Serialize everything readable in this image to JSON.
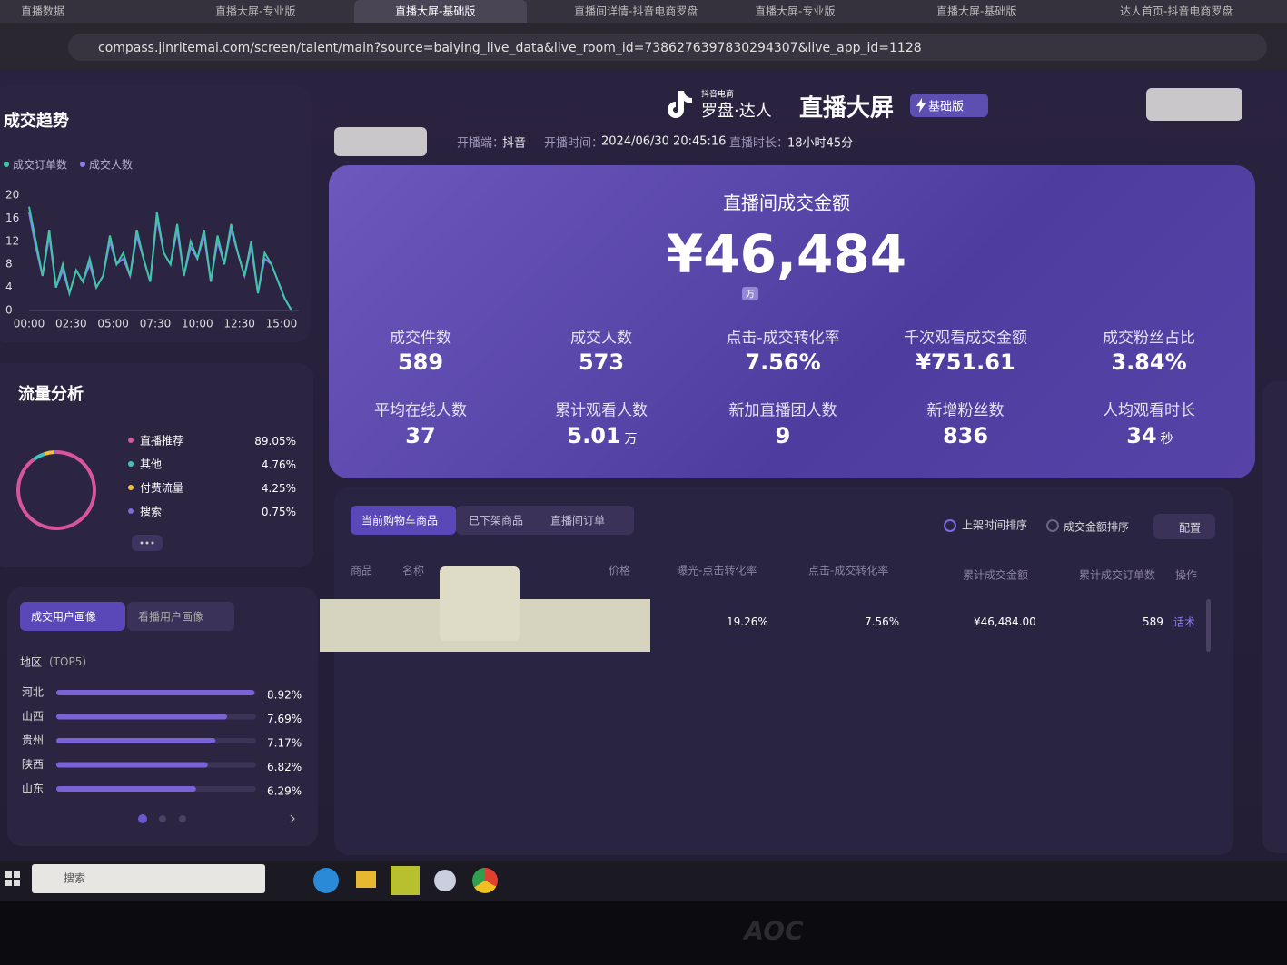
{
  "browser": {
    "tabs": [
      "直播数据",
      "直播大屏-专业版",
      "直播大屏-基础版",
      "直播间详情-抖音电商罗盘",
      "直播大屏-专业版",
      "直播大屏-基础版",
      "达人首页-抖音电商罗盘"
    ],
    "url": "compass.jinritemai.com/screen/talent/main?source=baiying_live_data&live_room_id=7386276397830294307&live_app_id=1128"
  },
  "header": {
    "brand_small": "抖音电商",
    "brand": "罗盘·达人",
    "title": "直播大屏",
    "badge": "基础版",
    "platform_label": "开播端：",
    "platform": "抖音",
    "start_label": "开播时间：",
    "start": "2024/06/30 20:45:16",
    "duration_label": "直播时长：",
    "duration": "18小时45分"
  },
  "trend": {
    "title": "成交趋势",
    "chart": {
      "type": "line",
      "x": [
        0,
        24,
        48,
        72,
        96,
        120,
        144,
        168,
        192,
        216,
        240,
        264,
        288,
        312,
        336,
        360,
        384,
        408,
        432,
        456,
        480,
        504,
        528,
        552,
        576,
        600,
        624,
        648,
        672,
        696,
        720,
        744,
        768,
        792,
        816,
        840,
        864,
        888,
        912,
        936
      ],
      "xlim": [
        0,
        960
      ],
      "xticks": [
        {
          "value": 0,
          "label": "00:00"
        },
        {
          "value": 150,
          "label": "02:30"
        },
        {
          "value": 300,
          "label": "05:00"
        },
        {
          "value": 450,
          "label": "07:30"
        },
        {
          "value": 600,
          "label": "10:00"
        },
        {
          "value": 750,
          "label": "12:30"
        },
        {
          "value": 900,
          "label": "15:00"
        }
      ],
      "ylim": [
        0,
        20
      ],
      "yticks": [
        0,
        4,
        8,
        12,
        16,
        20
      ],
      "series": [
        {
          "name": "成交订单数",
          "color": "#3fc6a8",
          "values": [
            18,
            12,
            6,
            14,
            4,
            8,
            3,
            7,
            5,
            9,
            4,
            6,
            13,
            8,
            10,
            6,
            14,
            9,
            5,
            17,
            10,
            8,
            15,
            6,
            12,
            9,
            14,
            5,
            13,
            8,
            15,
            10,
            6,
            12,
            3,
            10,
            8,
            5,
            2,
            0
          ]
        },
        {
          "name": "成交人数",
          "color": "#8b7cf0",
          "values": [
            17,
            11,
            6,
            13,
            4,
            7,
            3,
            7,
            5,
            8,
            4,
            6,
            12,
            8,
            9,
            6,
            13,
            9,
            5,
            16,
            10,
            8,
            14,
            6,
            11,
            9,
            13,
            5,
            12,
            8,
            14,
            10,
            6,
            11,
            3,
            9,
            8,
            5,
            2,
            0
          ]
        }
      ]
    }
  },
  "traffic": {
    "title": "流量分析",
    "chart": {
      "type": "donut",
      "categories": [
        "直播推荐",
        "其他",
        "付费流量",
        "搜索"
      ],
      "values": [
        89.05,
        4.76,
        4.25,
        0.75
      ],
      "value_labels": [
        "89.05%",
        "4.76%",
        "4.25%",
        "0.75%"
      ],
      "colors": [
        "#d8559c",
        "#3fc6c0",
        "#f0c040",
        "#7b6ae0"
      ]
    }
  },
  "portrait": {
    "tabs": [
      "成交用户画像",
      "看播用户画像"
    ],
    "region_label": "地区",
    "region_note": "(TOP5)",
    "chart": {
      "type": "bar",
      "orientation": "horizontal",
      "categories": [
        "河北",
        "山西",
        "贵州",
        "陕西",
        "山东"
      ],
      "values": [
        8.92,
        7.69,
        7.17,
        6.82,
        6.29
      ],
      "value_labels": [
        "8.92%",
        "7.69%",
        "7.17%",
        "6.82%",
        "6.29%"
      ],
      "xlim": [
        0,
        9
      ],
      "color": "#7a62d8"
    }
  },
  "kpi": {
    "title": "直播间成交金额",
    "value": "¥46,484",
    "unit": "万",
    "metrics": [
      {
        "label": "成交件数",
        "value": "589"
      },
      {
        "label": "成交人数",
        "value": "573"
      },
      {
        "label": "点击-成交转化率",
        "value": "7.56%"
      },
      {
        "label": "千次观看成交金额",
        "value": "¥751.61"
      },
      {
        "label": "成交粉丝占比",
        "value": "3.84%"
      },
      {
        "label": "平均在线人数",
        "value": "37"
      },
      {
        "label": "累计观看人数",
        "value": "5.01",
        "unit": "万"
      },
      {
        "label": "新加直播团人数",
        "value": "9"
      },
      {
        "label": "新增粉丝数",
        "value": "836"
      },
      {
        "label": "人均观看时长",
        "value": "34",
        "unit": "秒"
      }
    ]
  },
  "products": {
    "tabs": [
      "当前购物车商品",
      "已下架商品",
      "直播间订单"
    ],
    "sort": [
      "上架时间排序",
      "成交金额排序"
    ],
    "config": "配置",
    "columns": [
      "商品",
      "名称",
      "价格",
      "曝光-点击转化率",
      "点击-成交转化率",
      "累计成交金额",
      "累计成交订单数",
      "操作"
    ],
    "row": [
      "19.26%",
      "7.56%",
      "¥46,484.00",
      "589",
      "话术"
    ]
  },
  "taskbar": {
    "search": "搜索"
  },
  "monitor": {
    "brand": "AOC"
  }
}
